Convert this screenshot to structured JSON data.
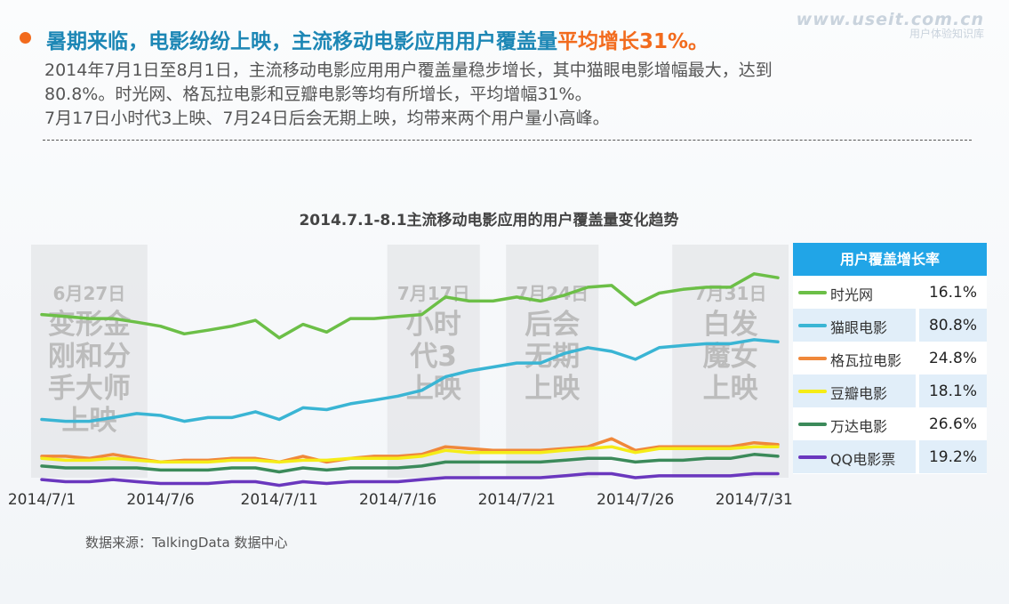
{
  "watermark": {
    "site": "www.useit.com.cn",
    "subtitle": "用户体验知识库"
  },
  "headline": {
    "main": "暑期来临，电影纷纷上映，主流移动电影应用用户覆盖量",
    "highlight": "平均增长31%。"
  },
  "body": {
    "line1": "2014年7月1日至8月1日，主流移动电影应用用户覆盖量稳步增长，其中猫眼电影增幅最大，达到",
    "line2": "80.8%。时光网、格瓦拉电影和豆瓣电影等均有所增长，平均增幅31%。",
    "line3": "7月17日小时代3上映、7月24日后会无期上映，均带来两个用户量小高峰。"
  },
  "legend_header": "用户覆盖增长率",
  "source": "数据来源：TalkingData 数据中心",
  "colors": {
    "accent_orange": "#f26b1d",
    "title_blue": "#1d87b5",
    "legend_header_bg": "#21a5e7"
  },
  "chart_data": {
    "type": "line",
    "title": "2014.7.1-8.1主流移动电影应用的用户覆盖量变化趋势",
    "x": [
      "2014/7/1",
      "2014/7/2",
      "2014/7/3",
      "2014/7/4",
      "2014/7/5",
      "2014/7/6",
      "2014/7/7",
      "2014/7/8",
      "2014/7/9",
      "2014/7/10",
      "2014/7/11",
      "2014/7/12",
      "2014/7/13",
      "2014/7/14",
      "2014/7/15",
      "2014/7/16",
      "2014/7/17",
      "2014/7/18",
      "2014/7/19",
      "2014/7/20",
      "2014/7/21",
      "2014/7/22",
      "2014/7/23",
      "2014/7/24",
      "2014/7/25",
      "2014/7/26",
      "2014/7/27",
      "2014/7/28",
      "2014/7/29",
      "2014/7/30",
      "2014/7/31",
      "2014/8/1"
    ],
    "xticks": [
      "2014/7/1",
      "2014/7/6",
      "2014/7/11",
      "2014/7/16",
      "2014/7/21",
      "2014/7/26",
      "2014/7/31"
    ],
    "ylim": [
      0,
      100
    ],
    "grid": false,
    "legend_placement": "right",
    "annotations": [
      {
        "date_label": "6月27日",
        "movie": [
          "变形金",
          "刚和分",
          "手大师",
          "上映"
        ],
        "x_start": "2014/7/1",
        "x_end": "2014/7/5"
      },
      {
        "date_label": "7月17日",
        "movie": [
          "小时",
          "代3",
          "上映"
        ],
        "x_start": "2014/7/16",
        "x_end": "2014/7/19"
      },
      {
        "date_label": "7月24日",
        "movie": [
          "后会",
          "无期",
          "上映"
        ],
        "x_start": "2014/7/21",
        "x_end": "2014/7/24"
      },
      {
        "date_label": "7月31日",
        "movie": [
          "白发",
          "魔女",
          "上映"
        ],
        "x_start": "2014/7/28",
        "x_end": "2014/8/1"
      }
    ],
    "series": [
      {
        "name": "时光网",
        "growth": "16.1%",
        "color": "#6cbf47",
        "values": [
          70.0,
          69.2,
          68.3,
          68.3,
          66.7,
          65.0,
          61.7,
          63.3,
          65.0,
          67.5,
          60.0,
          65.8,
          62.5,
          68.3,
          68.3,
          69.2,
          70.0,
          77.5,
          75.8,
          75.8,
          77.5,
          75.8,
          78.3,
          81.7,
          82.5,
          74.2,
          79.2,
          80.8,
          81.7,
          81.7,
          87.5,
          85.8
        ]
      },
      {
        "name": "猫眼电影",
        "growth": "80.8%",
        "color": "#3ab5d4",
        "values": [
          25.0,
          24.2,
          24.2,
          25.8,
          27.5,
          26.7,
          24.2,
          25.8,
          25.8,
          28.3,
          25.0,
          30.0,
          29.2,
          31.7,
          33.3,
          35.0,
          37.5,
          43.3,
          45.8,
          47.5,
          49.2,
          49.2,
          53.3,
          55.8,
          54.2,
          50.8,
          55.8,
          56.7,
          57.5,
          57.5,
          59.2,
          58.3
        ]
      },
      {
        "name": "格瓦拉电影",
        "growth": "24.8%",
        "color": "#f0883a",
        "values": [
          9.2,
          9.2,
          8.3,
          10.0,
          8.3,
          6.7,
          7.5,
          7.5,
          8.3,
          8.3,
          6.7,
          9.2,
          6.7,
          8.3,
          9.2,
          9.2,
          10.0,
          13.3,
          12.5,
          11.7,
          11.7,
          11.7,
          12.5,
          13.3,
          16.7,
          11.7,
          13.3,
          13.3,
          13.3,
          13.3,
          15.0,
          14.2
        ]
      },
      {
        "name": "豆瓣电影",
        "growth": "18.1%",
        "color": "#f5ec17",
        "values": [
          8.3,
          7.5,
          7.5,
          8.3,
          7.5,
          6.7,
          6.7,
          6.7,
          7.5,
          7.5,
          6.7,
          7.5,
          7.5,
          8.3,
          8.3,
          8.3,
          9.2,
          11.7,
          10.8,
          10.8,
          10.8,
          10.8,
          11.7,
          12.5,
          13.3,
          10.8,
          12.5,
          12.5,
          12.5,
          12.5,
          13.3,
          13.3
        ]
      },
      {
        "name": "万达电影",
        "growth": "26.6%",
        "color": "#3b8a5a",
        "values": [
          5.0,
          4.2,
          4.2,
          4.2,
          4.2,
          3.3,
          3.3,
          3.3,
          4.2,
          4.2,
          2.5,
          4.2,
          3.3,
          4.2,
          4.2,
          4.2,
          5.0,
          6.7,
          6.7,
          6.7,
          6.7,
          6.7,
          7.5,
          8.3,
          8.3,
          6.7,
          7.5,
          7.5,
          8.3,
          8.3,
          10.0,
          9.2
        ]
      },
      {
        "name": "QQ电影票",
        "growth": "19.2%",
        "color": "#6a37be",
        "values": [
          -0.8,
          -1.7,
          -1.7,
          -0.8,
          -1.7,
          -2.5,
          -2.5,
          -2.5,
          -1.7,
          -1.7,
          -3.3,
          -1.7,
          -2.5,
          -1.7,
          -1.7,
          -1.7,
          -0.8,
          0.0,
          0.0,
          0.0,
          0.0,
          0.0,
          0.8,
          1.7,
          1.7,
          0.0,
          0.8,
          0.8,
          0.8,
          0.8,
          1.7,
          1.7
        ]
      }
    ]
  }
}
